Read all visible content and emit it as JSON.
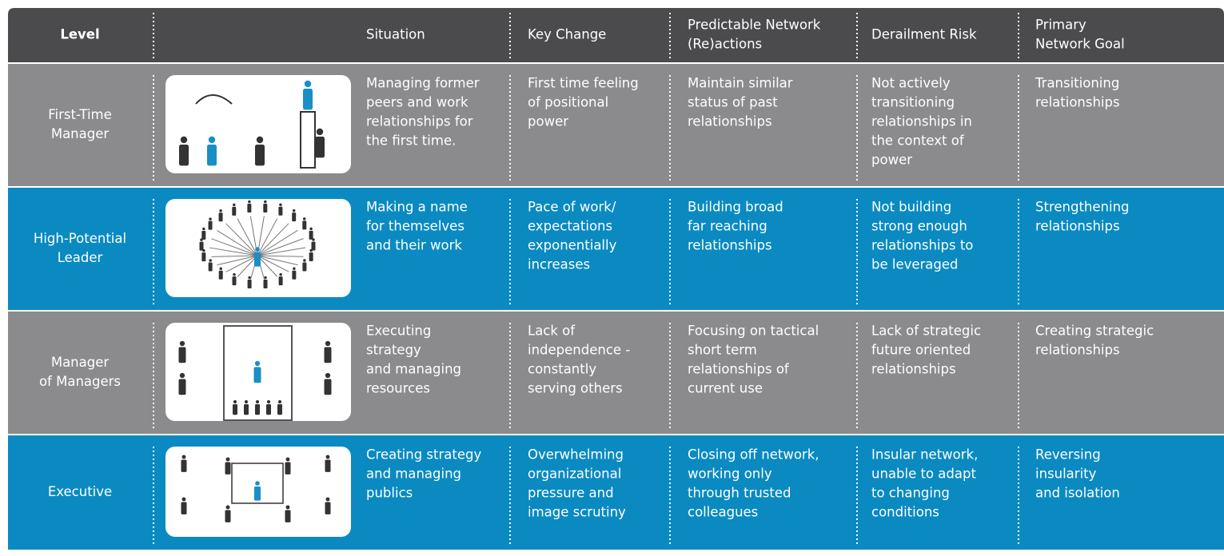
{
  "table": {
    "header": [
      [
        "Level"
      ],
      [
        "Situation"
      ],
      [
        "Key Change"
      ],
      [
        "Predictable Network",
        "(Re)actions"
      ],
      [
        "Derailment Risk"
      ],
      [
        "Primary",
        "Network Goal"
      ]
    ],
    "rows": [
      {
        "level": [
          "First-Time",
          "Manager"
        ],
        "cells": [
          [
            "Managing former",
            "peers and work",
            "relationships for",
            "the first time."
          ],
          [
            "First time feeling",
            "of positional",
            "power"
          ],
          [
            "Maintain similar",
            "status of past",
            "relationships"
          ],
          [
            "Not actively",
            "transitioning",
            "relationships in",
            "the context of",
            "power"
          ],
          [
            "Transitioning",
            "relationships"
          ]
        ]
      },
      {
        "level": [
          "High-Potential",
          "Leader"
        ],
        "cells": [
          [
            "Making a name",
            "for themselves",
            "and their work"
          ],
          [
            "Pace of work/",
            "expectations",
            "exponentially",
            "increases"
          ],
          [
            "Building broad",
            "far reaching",
            "relationships"
          ],
          [
            "Not building",
            "strong enough",
            "relationships to",
            "be leveraged"
          ],
          [
            "Strengthening",
            "relationships"
          ]
        ]
      },
      {
        "level": [
          "Manager",
          "of Managers"
        ],
        "cells": [
          [
            "Executing",
            "strategy",
            "and managing",
            "resources"
          ],
          [
            "Lack of",
            "independence -",
            "constantly",
            "serving others"
          ],
          [
            "Focusing on tactical",
            "short term",
            "relationships of",
            "current use"
          ],
          [
            "Lack of strategic",
            "future oriented",
            "relationships"
          ],
          [
            "Creating strategic",
            "relationships"
          ]
        ]
      },
      {
        "level": [
          "Executive"
        ],
        "cells": [
          [
            "Creating strategy",
            "and managing",
            "publics"
          ],
          [
            "Overwhelming",
            "organizational",
            "pressure and",
            "image scrutiny"
          ],
          [
            "Closing off network,",
            "working only",
            "through trusted",
            "colleagues"
          ],
          [
            "Insular network,",
            "unable to adapt",
            "to changing",
            "conditions"
          ],
          [
            "Reversing",
            "insularity",
            "and isolation"
          ]
        ]
      }
    ]
  }
}
